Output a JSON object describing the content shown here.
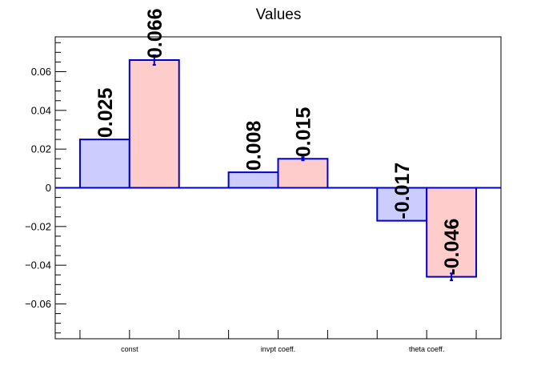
{
  "chart_data": {
    "type": "bar",
    "title": "Values",
    "xlabel": "",
    "ylabel": "",
    "categories": [
      "const",
      "invpt coeff.",
      "theta coeff."
    ],
    "series": [
      {
        "values": [
          0.025,
          0.008,
          -0.017
        ],
        "errors": [
          0.0,
          0.0,
          0.0
        ],
        "color": "#ccccff"
      },
      {
        "values": [
          0.066,
          0.015,
          -0.046
        ],
        "errors": [
          0.0025,
          0.0008,
          0.0018
        ],
        "color": "#ffcccc"
      }
    ],
    "data_labels": [
      [
        "0.025",
        "0.008",
        "-0.017"
      ],
      [
        "0.066",
        "0.015",
        "-0.046"
      ]
    ],
    "ylim": [
      -0.078,
      0.078
    ],
    "yticks": [
      -0.06,
      -0.04,
      -0.02,
      0,
      0.02,
      0.04,
      0.06
    ],
    "ytick_labels": [
      "−0.06",
      "−0.04",
      "−0.02",
      "0",
      "0.02",
      "0.04",
      "0.06"
    ],
    "edge_color": "#0000cc",
    "grid": false,
    "legend": "none"
  }
}
